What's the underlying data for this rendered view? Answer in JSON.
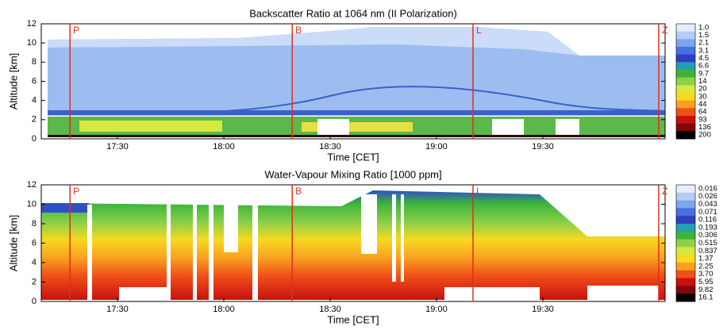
{
  "chart_data": [
    {
      "type": "heatmap",
      "title": "Backscatter Ratio at 1064 nm (II  Polarization)",
      "x_label": "Time [CET]",
      "y_label": "Altitude [km]",
      "xlim": [
        1028.5,
        1204.5
      ],
      "xticks": [
        {
          "value": 1050,
          "label": "17:30"
        },
        {
          "value": 1080,
          "label": "18:00"
        },
        {
          "value": 1110,
          "label": "18:30"
        },
        {
          "value": 1140,
          "label": "19:00"
        },
        {
          "value": 1170,
          "label": "19:30"
        }
      ],
      "ylim": [
        0,
        12
      ],
      "yticks": [
        0,
        2,
        4,
        6,
        8,
        10,
        12
      ],
      "markers": [
        {
          "label": "P",
          "x": 1036.6
        },
        {
          "label": "B",
          "x": 1099.3
        },
        {
          "label": "L",
          "x": 1150.3
        },
        {
          "label": "Z",
          "x": 1202.7
        }
      ],
      "marker_color": "#e0301e",
      "colorbar_labels": [
        "1.0",
        "1.5",
        "2.1",
        "3.1",
        "4.5",
        "6.6",
        "9.7",
        "14",
        "20",
        "30",
        "44",
        "64",
        "93",
        "136",
        "200"
      ],
      "colorbar_colors": [
        "#e6eefc",
        "#b5cdf4",
        "#7fa6ec",
        "#4a6fe0",
        "#2f3fc0",
        "#22a0b0",
        "#3cb43c",
        "#8fd048",
        "#d8e840",
        "#f8d820",
        "#f8a020",
        "#f05018",
        "#c81010",
        "#800808",
        "#000000"
      ]
    },
    {
      "type": "heatmap",
      "title": "Water-Vapour Mixing Ratio [1000 ppm]",
      "x_label": "Time [CET]",
      "y_label": "Altitude [km]",
      "xlim": [
        1028.5,
        1204.5
      ],
      "xticks": [
        {
          "value": 1050,
          "label": "17:30"
        },
        {
          "value": 1080,
          "label": "18:00"
        },
        {
          "value": 1110,
          "label": "18:30"
        },
        {
          "value": 1140,
          "label": "19:00"
        },
        {
          "value": 1170,
          "label": "19:30"
        }
      ],
      "ylim": [
        0,
        12
      ],
      "yticks": [
        0,
        2,
        4,
        6,
        8,
        10,
        12
      ],
      "markers": [
        {
          "label": "P",
          "x": 1036.6
        },
        {
          "label": "B",
          "x": 1099.3
        },
        {
          "label": "L",
          "x": 1150.3
        },
        {
          "label": "Z",
          "x": 1202.7
        }
      ],
      "marker_color": "#e0301e",
      "colorbar_labels": [
        "0.016",
        "0.026",
        "0.043",
        "0.071",
        "0.116",
        "0.193",
        "0.306",
        "0.515",
        "0.837",
        "1.37",
        "2.25",
        "3.70",
        "5.95",
        "9.82",
        "16.1"
      ],
      "colorbar_colors": [
        "#e6eefc",
        "#b5cdf4",
        "#7fa6ec",
        "#4a6fe0",
        "#2f3fc0",
        "#22a0b0",
        "#3cb43c",
        "#8fd048",
        "#d8e840",
        "#f8d820",
        "#f8a020",
        "#f05018",
        "#c81010",
        "#800808",
        "#000000"
      ]
    }
  ]
}
